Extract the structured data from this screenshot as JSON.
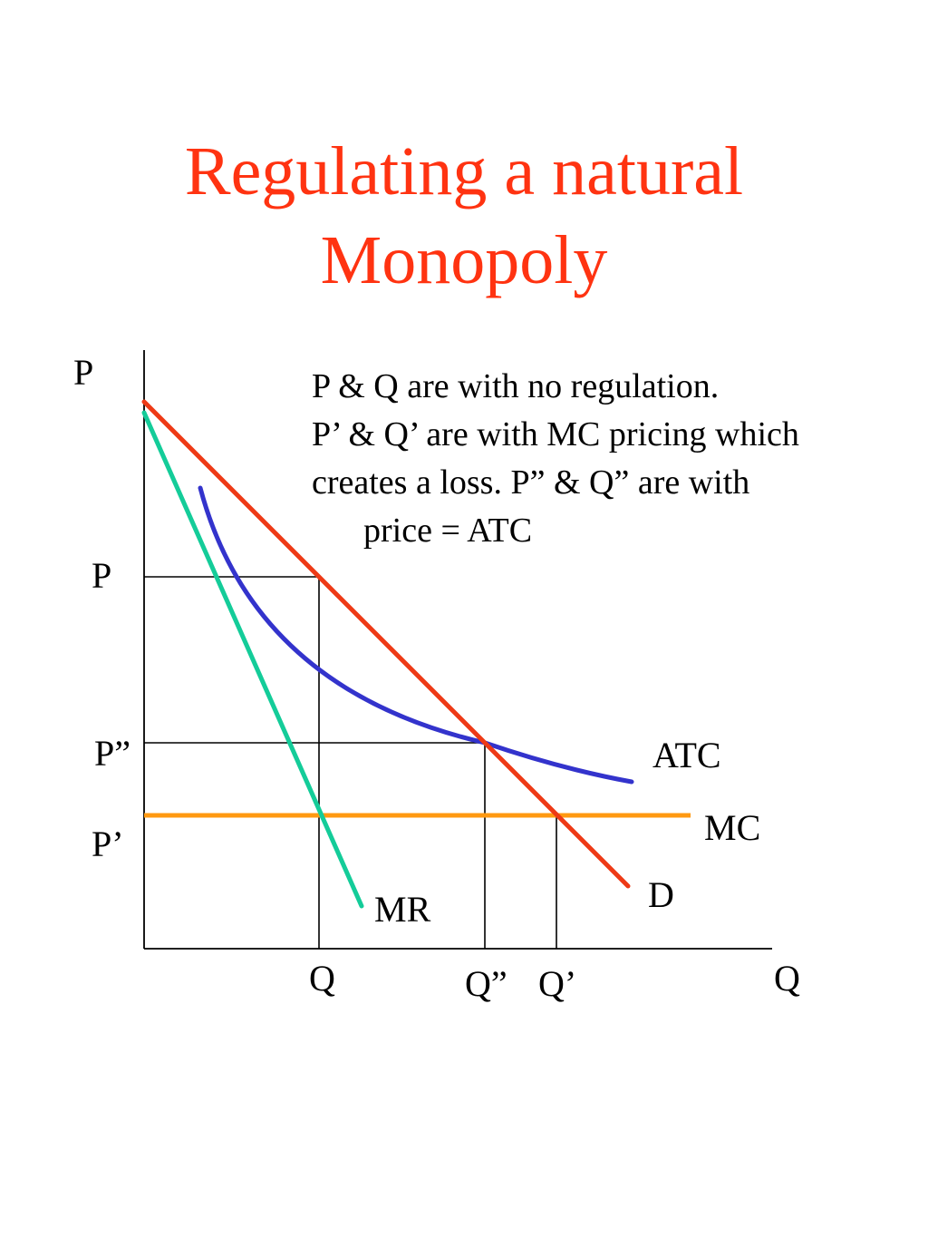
{
  "title": {
    "line1": "Regulating a natural",
    "line2": "Monopoly",
    "color": "#ff3311"
  },
  "note": {
    "lines": [
      "P & Q are with no regulation.",
      "P’ & Q’ are with MC pricing which",
      "creates a loss.  P” & Q” are with",
      "price = ATC"
    ]
  },
  "axes": {
    "y_label": "P",
    "x_label": "Q"
  },
  "price_labels": {
    "p": "P",
    "p_double": "P”",
    "p_prime": "P’"
  },
  "quantity_labels": {
    "q": "Q",
    "q_double": "Q”",
    "q_prime": "Q’"
  },
  "curves": {
    "demand": {
      "label": "D",
      "color": "#ee3a16"
    },
    "marginal_revenue": {
      "label": "MR",
      "color": "#14cc99"
    },
    "average_total_cost": {
      "label": "ATC",
      "color": "#3333cc"
    },
    "marginal_cost": {
      "label": "MC",
      "color": "#ff9911"
    }
  }
}
